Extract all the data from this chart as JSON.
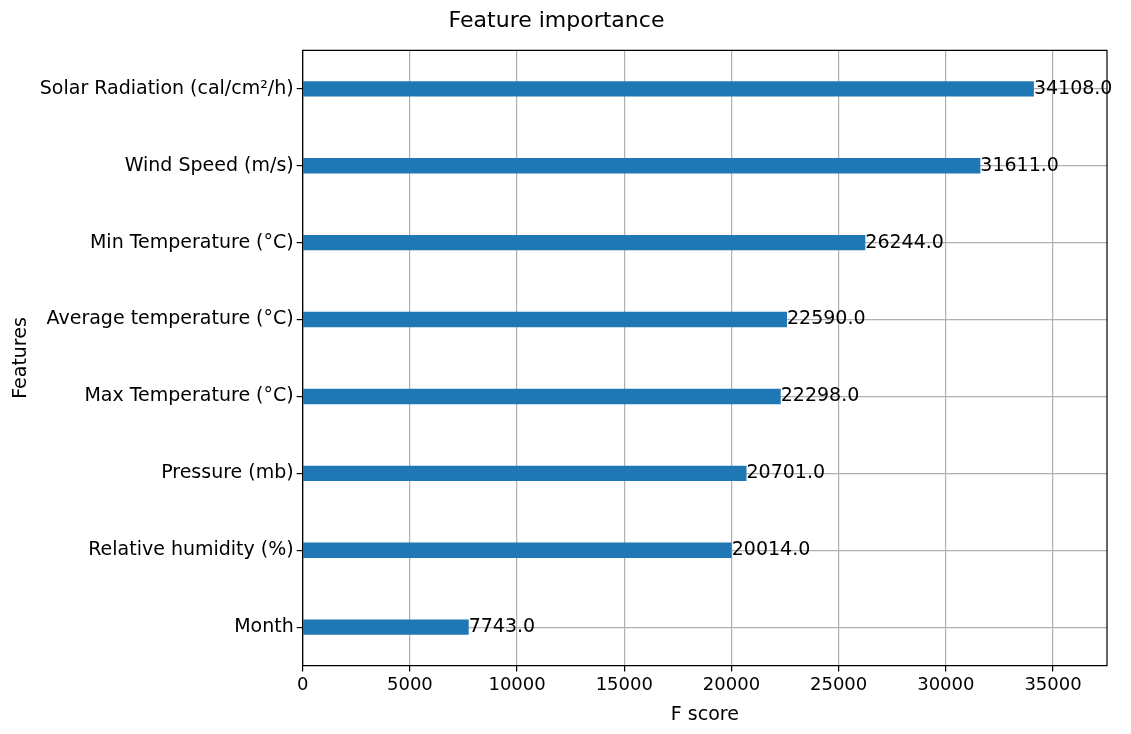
{
  "chart_data": {
    "type": "bar",
    "orientation": "horizontal",
    "title": "Feature importance",
    "xlabel": "F score",
    "ylabel": "Features",
    "categories": [
      "Solar Radiation (cal/cm²/h)",
      "Wind Speed (m/s)",
      "Min Temperature (°C)",
      "Average temperature (°C)",
      "Max Temperature (°C)",
      "Pressure (mb)",
      "Relative humidity (%)",
      "Month"
    ],
    "values": [
      34108,
      31611,
      26244,
      22590,
      22298,
      20701,
      20014,
      7743
    ],
    "value_labels": [
      "34108.0",
      "31611.0",
      "26244.0",
      "22590.0",
      "22298.0",
      "20701.0",
      "20014.0",
      "7743.0"
    ],
    "color": "#1f77b4",
    "xlim": [
      0,
      37518.8
    ],
    "xticks": [
      0,
      5000,
      10000,
      15000,
      20000,
      25000,
      30000,
      35000
    ],
    "grid": true,
    "legend": false
  }
}
